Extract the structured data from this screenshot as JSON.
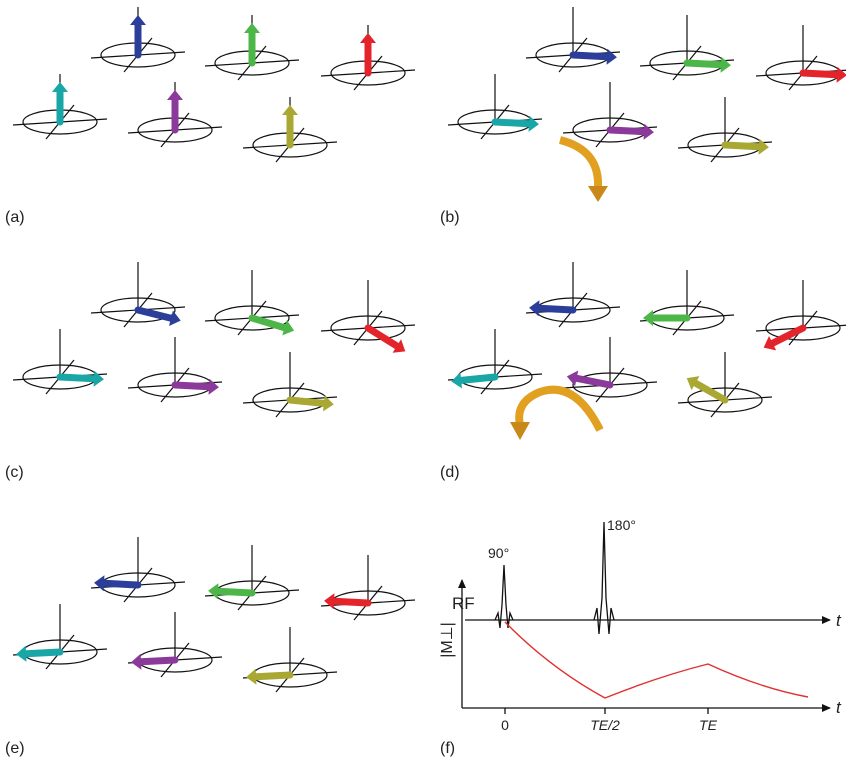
{
  "panels": {
    "labels": [
      "(a)",
      "(b)",
      "(c)",
      "(d)",
      "(e)",
      "(f)"
    ]
  },
  "timing": {
    "pulse_90": "90°",
    "pulse_180": "180°",
    "rf_label": "RF",
    "t_axis_rf": "t",
    "t_axis_m": "t",
    "m_label": "|M⊥|",
    "ticks": [
      "0",
      "TE/2",
      "TE"
    ]
  }
}
